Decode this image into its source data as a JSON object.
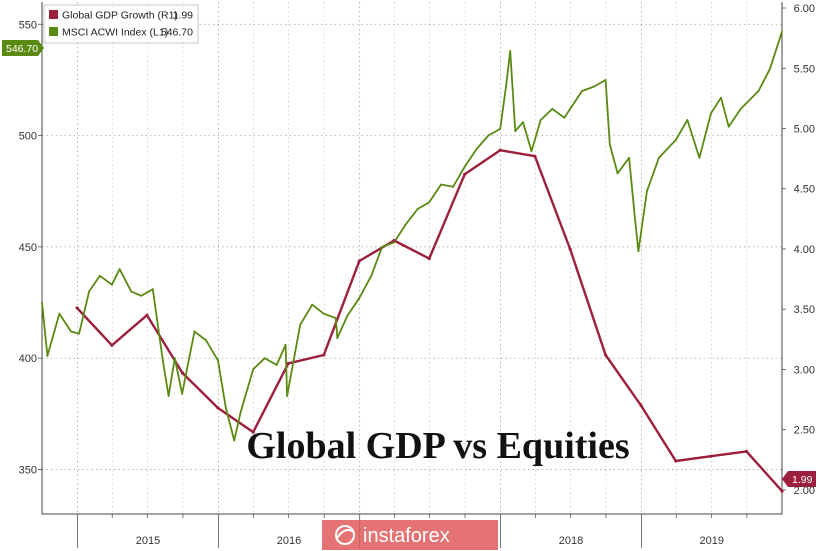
{
  "chart_data": {
    "type": "line",
    "overlay_title": "Global GDP vs Equities",
    "legend": [
      {
        "label": "Global GDP Growth (R1)",
        "value": "1.99",
        "color": "#9c1f3c"
      },
      {
        "label": "MSCI ACWI Index (L1)",
        "value": "546.70",
        "color": "#5a8a12"
      }
    ],
    "left_axis": {
      "ylim": [
        330,
        560
      ],
      "ticks": [
        "350",
        "400",
        "450",
        "500",
        "550"
      ]
    },
    "right_axis": {
      "ylim": [
        1.8,
        6.05
      ],
      "ticks": [
        "2.00",
        "2.50",
        "3.00",
        "3.50",
        "4.00",
        "4.50",
        "5.00",
        "5.50",
        "6.00"
      ]
    },
    "x_axis": {
      "range": [
        "2014-10-01",
        "2019-12-31"
      ],
      "labels": [
        "2015",
        "2016",
        "2018",
        "2019"
      ]
    },
    "last_value_labels": {
      "left": "546.70",
      "right": "1.99"
    },
    "grid": true,
    "legend_position": "top-left",
    "series": [
      {
        "name": "Global GDP Growth (R1)",
        "axis": "right",
        "color": "#9c1f3c",
        "x": [
          "2014-12-31",
          "2015-03-31",
          "2015-06-30",
          "2015-09-30",
          "2015-12-31",
          "2016-03-31",
          "2016-06-30",
          "2016-09-30",
          "2016-12-31",
          "2017-03-31",
          "2017-06-30",
          "2017-09-30",
          "2017-12-31",
          "2018-03-31",
          "2018-06-30",
          "2018-09-30",
          "2018-12-31",
          "2019-03-31",
          "2019-06-30",
          "2019-09-30",
          "2019-12-31"
        ],
        "y": [
          3.51,
          3.2,
          3.45,
          2.97,
          2.68,
          2.48,
          3.05,
          3.12,
          3.9,
          4.07,
          3.92,
          4.62,
          4.82,
          4.77,
          4.0,
          3.12,
          2.7,
          2.24,
          2.28,
          2.32,
          1.99
        ]
      },
      {
        "name": "MSCI ACWI Index (L1)",
        "axis": "left",
        "color": "#5a8a12",
        "x": [
          "2014-10-01",
          "2014-10-15",
          "2014-11-15",
          "2014-12-15",
          "2015-01-05",
          "2015-01-31",
          "2015-02-28",
          "2015-03-31",
          "2015-04-20",
          "2015-05-20",
          "2015-06-15",
          "2015-07-15",
          "2015-08-10",
          "2015-08-25",
          "2015-09-10",
          "2015-09-29",
          "2015-10-31",
          "2015-11-30",
          "2015-12-31",
          "2016-01-20",
          "2016-02-11",
          "2016-02-28",
          "2016-03-31",
          "2016-04-30",
          "2016-05-31",
          "2016-06-23",
          "2016-06-27",
          "2016-07-31",
          "2016-08-31",
          "2016-09-30",
          "2016-10-31",
          "2016-11-04",
          "2016-11-30",
          "2016-12-31",
          "2017-01-31",
          "2017-02-28",
          "2017-03-31",
          "2017-04-30",
          "2017-05-31",
          "2017-06-30",
          "2017-07-31",
          "2017-08-31",
          "2017-09-30",
          "2017-10-31",
          "2017-11-30",
          "2017-12-31",
          "2018-01-15",
          "2018-01-26",
          "2018-02-08",
          "2018-02-28",
          "2018-03-22",
          "2018-04-15",
          "2018-05-15",
          "2018-06-15",
          "2018-07-31",
          "2018-08-31",
          "2018-09-30",
          "2018-10-11",
          "2018-10-31",
          "2018-11-30",
          "2018-12-15",
          "2018-12-24",
          "2019-01-15",
          "2019-02-15",
          "2019-03-31",
          "2019-04-30",
          "2019-05-31",
          "2019-06-30",
          "2019-07-26",
          "2019-08-15",
          "2019-09-15",
          "2019-10-31",
          "2019-11-30",
          "2019-12-31"
        ],
        "y": [
          425,
          401,
          420,
          412,
          411,
          430,
          437,
          433,
          440,
          430,
          428,
          431,
          399,
          383,
          400,
          384,
          412,
          408,
          399,
          378,
          363,
          376,
          395,
          400,
          397,
          406,
          383,
          415,
          424,
          420,
          418,
          409,
          419,
          427,
          437,
          450,
          452,
          460,
          467,
          470,
          478,
          477,
          486,
          494,
          500,
          503,
          522,
          538,
          502,
          506,
          493,
          507,
          512,
          508,
          520,
          522,
          525,
          496,
          483,
          490,
          463,
          448,
          475,
          490,
          498,
          507,
          490,
          510,
          517,
          504,
          512,
          520,
          530,
          546.7
        ]
      }
    ]
  },
  "watermark": {
    "brand": "instaforex"
  }
}
